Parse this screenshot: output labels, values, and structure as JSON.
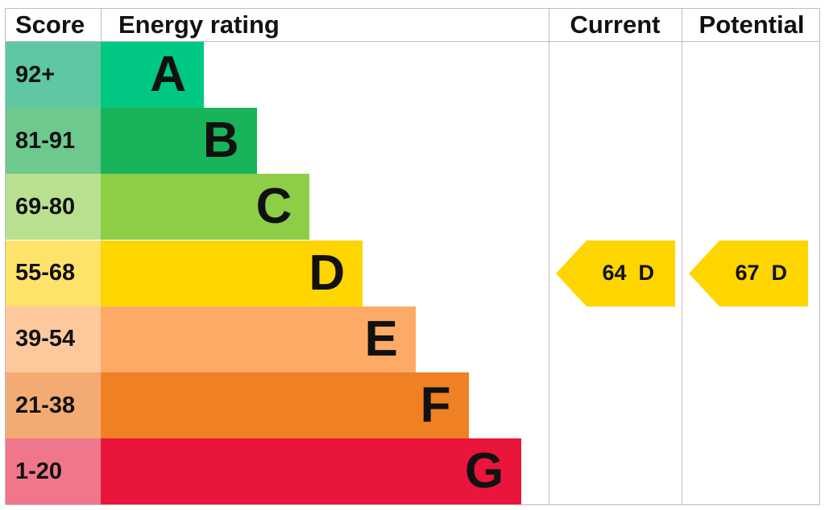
{
  "headers": {
    "score": "Score",
    "rating": "Energy rating",
    "current": "Current",
    "potential": "Potential"
  },
  "colors": {
    "border": "#bdbdbd",
    "A": "#00c781",
    "A_score": "#5fc7a2",
    "B": "#19b459",
    "B_score": "#6dc98d",
    "C": "#8dce46",
    "C_score": "#b9e08f",
    "D": "#ffd500",
    "D_score": "#ffe26a",
    "E": "#fcaa65",
    "E_score": "#fdc99c",
    "F": "#ef8023",
    "F_score": "#f4ab73",
    "G": "#e9153b",
    "G_score": "#f0778b"
  },
  "chart_data": {
    "type": "bar",
    "bands": [
      {
        "score": "92+",
        "letter": "A",
        "min": 92,
        "max": 100
      },
      {
        "score": "81-91",
        "letter": "B",
        "min": 81,
        "max": 91
      },
      {
        "score": "69-80",
        "letter": "C",
        "min": 69,
        "max": 80
      },
      {
        "score": "55-68",
        "letter": "D",
        "min": 55,
        "max": 68
      },
      {
        "score": "39-54",
        "letter": "E",
        "min": 39,
        "max": 54
      },
      {
        "score": "21-38",
        "letter": "F",
        "min": 21,
        "max": 38
      },
      {
        "score": "1-20",
        "letter": "G",
        "min": 1,
        "max": 20
      }
    ],
    "current": {
      "value": 64,
      "letter": "D",
      "label": "64  D"
    },
    "potential": {
      "value": 67,
      "letter": "D",
      "label": "67  D"
    }
  }
}
